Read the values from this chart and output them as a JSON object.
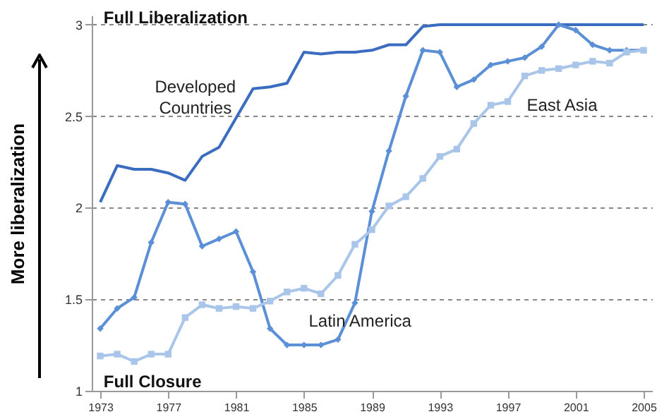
{
  "chart_data": {
    "type": "line",
    "ylabel": "More liberalization",
    "x": [
      1973,
      1974,
      1975,
      1976,
      1977,
      1978,
      1979,
      1980,
      1981,
      1982,
      1983,
      1984,
      1985,
      1986,
      1987,
      1988,
      1989,
      1990,
      1991,
      1992,
      1993,
      1994,
      1995,
      1996,
      1997,
      1998,
      1999,
      2000,
      2001,
      2002,
      2003,
      2004,
      2005
    ],
    "series": [
      {
        "name": "Developed Countries",
        "color": "#3a6cc0",
        "marker": "none",
        "values": [
          2.03,
          2.23,
          2.21,
          2.21,
          2.19,
          2.15,
          2.28,
          2.33,
          2.49,
          2.65,
          2.66,
          2.68,
          2.85,
          2.84,
          2.85,
          2.85,
          2.86,
          2.89,
          2.89,
          2.99,
          3.0,
          3.0,
          3.0,
          3.0,
          3.0,
          3.0,
          3.0,
          3.0,
          3.0,
          3.0,
          3.0,
          3.0,
          3.0
        ]
      },
      {
        "name": "Latin America",
        "color": "#5b8fd6",
        "marker": "diamond",
        "values": [
          1.34,
          1.45,
          1.51,
          1.81,
          2.03,
          2.02,
          1.79,
          1.83,
          1.87,
          1.65,
          1.34,
          1.25,
          1.25,
          1.25,
          1.28,
          1.48,
          1.98,
          2.31,
          2.61,
          2.86,
          2.85,
          2.66,
          2.7,
          2.78,
          2.8,
          2.82,
          2.88,
          3.0,
          2.97,
          2.89,
          2.86,
          2.86,
          2.86
        ]
      },
      {
        "name": "East Asia",
        "color": "#a9c6ea",
        "marker": "square",
        "values": [
          1.19,
          1.2,
          1.16,
          1.2,
          1.2,
          1.4,
          1.47,
          1.45,
          1.46,
          1.45,
          1.49,
          1.54,
          1.56,
          1.53,
          1.63,
          1.8,
          1.88,
          2.01,
          2.06,
          2.16,
          2.28,
          2.32,
          2.46,
          2.56,
          2.58,
          2.72,
          2.75,
          2.76,
          2.78,
          2.8,
          2.79,
          2.85,
          2.86
        ]
      }
    ],
    "annotations": [
      "Full Liberalization",
      "Full Closure"
    ],
    "xlim": [
      1972.5,
      2005.5
    ],
    "xticks": [
      1973,
      1977,
      1981,
      1985,
      1989,
      1993,
      1997,
      2001,
      2005
    ],
    "ylim": [
      1,
      3.05
    ],
    "yticks": [
      1,
      1.5,
      2,
      2.5,
      3
    ],
    "grid": "y",
    "legend": false,
    "line_style": "solid"
  }
}
